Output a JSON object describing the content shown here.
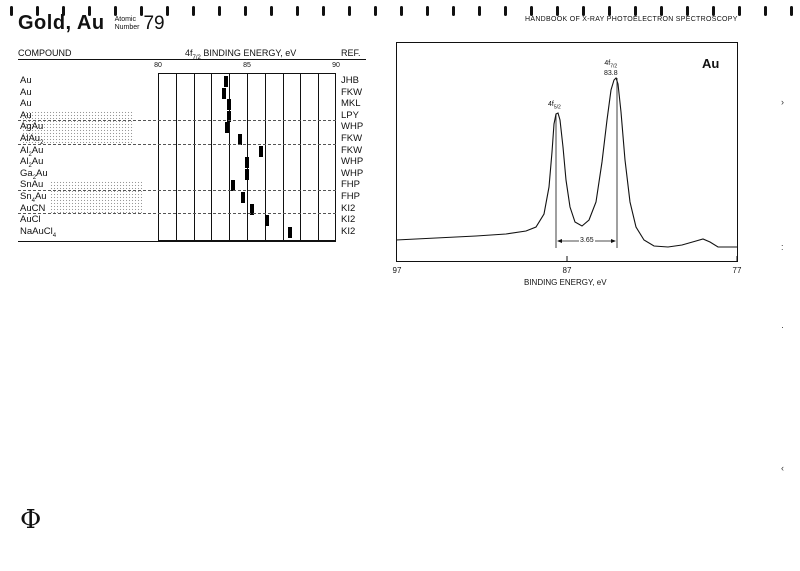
{
  "header": {
    "element": "Gold, Au",
    "atomic_label_1": "Atomic",
    "atomic_label_2": "Number",
    "atomic_number": "79",
    "handbook": "HANDBOOK OF X-RAY PHOTOELECTRON SPECTROSCOPY"
  },
  "table": {
    "col_compound": "COMPOUND",
    "col_energy": "4f7/2 BINDING ENERGY, eV",
    "col_ref": "REF.",
    "axis_ticks": [
      "80",
      "85",
      "90"
    ],
    "rows": [
      {
        "compound": "Au",
        "ref": "JHB",
        "energy": 83.8
      },
      {
        "compound": "Au",
        "ref": "FKW",
        "energy": 83.7
      },
      {
        "compound": "Au",
        "ref": "MKL",
        "energy": 84.0
      },
      {
        "compound": "Au",
        "ref": "LPY",
        "energy": 84.0
      },
      {
        "compound": "AgAu",
        "ref": "WHP",
        "energy": 83.9
      },
      {
        "compound": "AlAu2",
        "ref": "FKW",
        "energy": 84.6
      },
      {
        "compound": "Al2Au",
        "ref": "FKW",
        "energy": 85.8
      },
      {
        "compound": "Al2Au",
        "ref": "WHP",
        "energy": 85.0
      },
      {
        "compound": "Ga2Au",
        "ref": "WHP",
        "energy": 85.0
      },
      {
        "compound": "SnAu",
        "ref": "FHP",
        "energy": 84.2
      },
      {
        "compound": "Sn4Au",
        "ref": "FHP",
        "energy": 84.8
      },
      {
        "compound": "AuCN",
        "ref": "KI2",
        "energy": 85.3
      },
      {
        "compound": "AuCl",
        "ref": "KI2",
        "energy": 86.1
      },
      {
        "compound": "NaAuCl4",
        "ref": "KI2",
        "energy": 87.4
      }
    ]
  },
  "spectrum": {
    "label": "Au",
    "peak1_name": "4f7/2",
    "peak1_value": "83.8",
    "peak2_name": "4f5/2",
    "separation": "3.65",
    "x_ticks": [
      "97",
      "87",
      "77"
    ],
    "xlabel": "BINDING ENERGY, eV"
  },
  "footer": {
    "logo": "Φ"
  }
}
